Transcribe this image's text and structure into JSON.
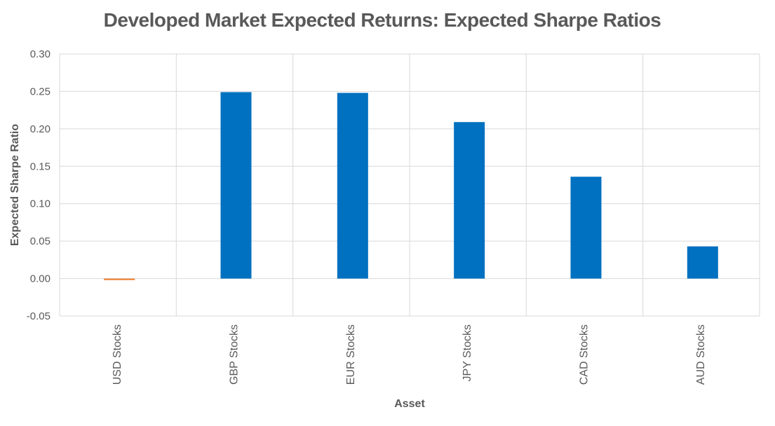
{
  "chart_data": {
    "type": "bar",
    "title": "Developed Market Expected Returns: Expected Sharpe Ratios",
    "xlabel": "Asset",
    "ylabel": "Expected Sharpe Ratio",
    "categories": [
      "USD Stocks",
      "GBP Stocks",
      "EUR Stocks",
      "JPY Stocks",
      "CAD Stocks",
      "AUD Stocks"
    ],
    "values": [
      -0.002,
      0.249,
      0.248,
      0.209,
      0.136,
      0.043
    ],
    "colors": [
      "#ED7D31",
      "#0070C0",
      "#0070C0",
      "#0070C0",
      "#0070C0",
      "#0070C0"
    ],
    "ylim": [
      -0.05,
      0.3
    ],
    "yticks": [
      0.3,
      0.25,
      0.2,
      0.15,
      0.1,
      0.05,
      0.0,
      -0.05
    ],
    "ytick_labels": [
      "0.30",
      "0.25",
      "0.20",
      "0.15",
      "0.10",
      "0.05",
      "0.00",
      "-0.05"
    ],
    "grid": true,
    "legend": "none"
  }
}
